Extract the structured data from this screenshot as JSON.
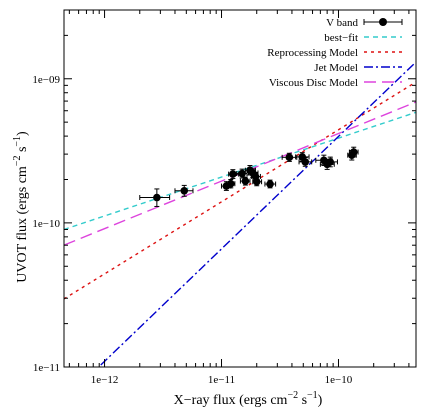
{
  "chart_data": {
    "type": "scatter",
    "xlabel": {
      "base": "X−ray flux (ergs cm",
      "sup1": "−2",
      "mid": " s",
      "sup2": "−1",
      "end": ")"
    },
    "ylabel": {
      "base": "UVOT flux (ergs cm",
      "sup1": "−2",
      "mid": " s",
      "sup2": "−1",
      "end": ")"
    },
    "xscale": "log",
    "yscale": "log",
    "xlim": [
      4.5e-13,
      4.6e-10
    ],
    "ylim": [
      1e-11,
      3e-09
    ],
    "x_ticks": [
      {
        "value": 1e-12,
        "label": "1e−12"
      },
      {
        "value": 1e-11,
        "label": "1e−11"
      },
      {
        "value": 1e-10,
        "label": "1e−10"
      }
    ],
    "y_ticks": [
      {
        "value": 1e-11,
        "label": "1e−11"
      },
      {
        "value": 1e-10,
        "label": "1e−10"
      },
      {
        "value": 1e-09,
        "label": "1e−09"
      }
    ],
    "legend_position": "top-right",
    "points": {
      "name": "V band",
      "color": "#000000",
      "data": [
        {
          "x": 2.8e-12,
          "y": 1.5e-10,
          "xerr": [
            2e-12,
            3.6e-12
          ],
          "yerr": [
            1.3e-10,
            1.72e-10
          ]
        },
        {
          "x": 4.8e-12,
          "y": 1.67e-10,
          "xerr": [
            4e-12,
            5.7e-12
          ],
          "yerr": [
            1.53e-10,
            1.82e-10
          ]
        },
        {
          "x": 1.1e-11,
          "y": 1.8e-10,
          "xerr": [
            1e-11,
            1.2e-11
          ],
          "yerr": [
            1.68e-10,
            1.93e-10
          ]
        },
        {
          "x": 1.2e-11,
          "y": 1.87e-10,
          "xerr": [
            1.1e-11,
            1.3e-11
          ],
          "yerr": [
            1.75e-10,
            2e-10
          ]
        },
        {
          "x": 1.25e-11,
          "y": 2.18e-10,
          "xerr": [
            1.15e-11,
            1.4e-11
          ],
          "yerr": [
            2.03e-10,
            2.34e-10
          ]
        },
        {
          "x": 1.5e-11,
          "y": 2.2e-10,
          "xerr": [
            1.35e-11,
            1.65e-11
          ],
          "yerr": [
            2.05e-10,
            2.36e-10
          ]
        },
        {
          "x": 1.6e-11,
          "y": 1.95e-10,
          "xerr": [
            1.45e-11,
            1.75e-11
          ],
          "yerr": [
            1.83e-10,
            2.08e-10
          ]
        },
        {
          "x": 1.75e-11,
          "y": 2.32e-10,
          "xerr": [
            1.6e-11,
            1.95e-11
          ],
          "yerr": [
            2.15e-10,
            2.5e-10
          ]
        },
        {
          "x": 1.85e-11,
          "y": 2.22e-10,
          "xerr": [
            1.7e-11,
            2.05e-11
          ],
          "yerr": [
            2.07e-10,
            2.37e-10
          ]
        },
        {
          "x": 1.95e-11,
          "y": 2.1e-10,
          "xerr": [
            1.8e-11,
            2.15e-11
          ],
          "yerr": [
            1.97e-10,
            2.24e-10
          ]
        },
        {
          "x": 2e-11,
          "y": 1.93e-10,
          "xerr": [
            1.85e-11,
            2.2e-11
          ],
          "yerr": [
            1.81e-10,
            2.06e-10
          ]
        },
        {
          "x": 2.6e-11,
          "y": 1.86e-10,
          "xerr": [
            2.35e-11,
            2.9e-11
          ],
          "yerr": [
            1.75e-10,
            1.98e-10
          ]
        },
        {
          "x": 3.8e-11,
          "y": 2.85e-10,
          "xerr": [
            3.3e-11,
            4.4e-11
          ],
          "yerr": [
            2.67e-10,
            3.04e-10
          ]
        },
        {
          "x": 4.9e-11,
          "y": 2.87e-10,
          "xerr": [
            4.3e-11,
            5.6e-11
          ],
          "yerr": [
            2.68e-10,
            3.07e-10
          ]
        },
        {
          "x": 5.2e-11,
          "y": 2.65e-10,
          "xerr": [
            4.6e-11,
            5.9e-11
          ],
          "yerr": [
            2.47e-10,
            2.84e-10
          ]
        },
        {
          "x": 7.5e-11,
          "y": 2.72e-10,
          "xerr": [
            6.4e-11,
            8.8e-11
          ],
          "yerr": [
            2.5e-10,
            2.95e-10
          ]
        },
        {
          "x": 8e-11,
          "y": 2.55e-10,
          "xerr": [
            7e-11,
            9.2e-11
          ],
          "yerr": [
            2.35e-10,
            2.76e-10
          ]
        },
        {
          "x": 8.5e-11,
          "y": 2.65e-10,
          "xerr": [
            7.4e-11,
            9.8e-11
          ],
          "yerr": [
            2.45e-10,
            2.86e-10
          ]
        },
        {
          "x": 1.3e-10,
          "y": 2.95e-10,
          "xerr": [
            1.2e-10,
            1.42e-10
          ],
          "yerr": [
            2.73e-10,
            3.18e-10
          ]
        },
        {
          "x": 1.35e-10,
          "y": 3.1e-10,
          "xerr": [
            1.24e-10,
            1.47e-10
          ],
          "yerr": [
            2.87e-10,
            3.35e-10
          ]
        }
      ]
    },
    "lines": [
      {
        "name": "best−fit",
        "color": "#33cccc",
        "dash": "5,4",
        "slope": 0.27,
        "anchor": [
          1e-11,
          2.08e-10
        ]
      },
      {
        "name": "Reprocessing Model",
        "color": "#dd1111",
        "dash": "3,4",
        "slope": 0.5,
        "anchor": [
          1e-11,
          1.4e-10
        ]
      },
      {
        "name": "Jet Model",
        "color": "#0000cc",
        "dash": "9,3,2,3",
        "slope": 0.78,
        "anchor": [
          1e-11,
          6.6e-11
        ]
      },
      {
        "name": "Viscous Disc Model",
        "color": "#dd44dd",
        "dash": "12,6",
        "slope": 0.33,
        "anchor": [
          1e-11,
          1.95e-10
        ]
      }
    ]
  }
}
